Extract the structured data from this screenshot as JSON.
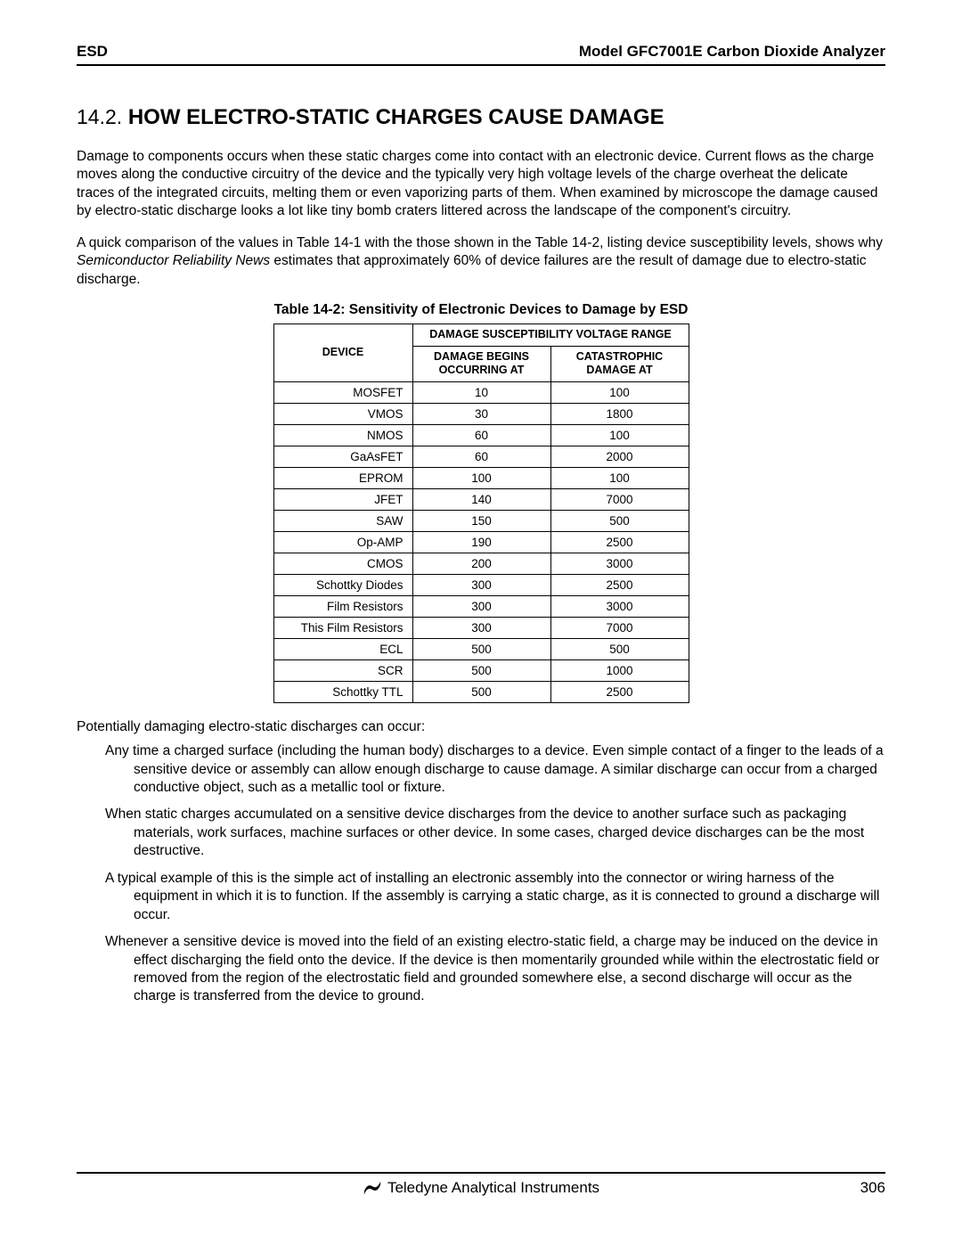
{
  "header": {
    "left": "ESD",
    "right": "Model GFC7001E Carbon Dioxide Analyzer"
  },
  "section": {
    "number": "14.2.",
    "title": "HOW ELECTRO-STATIC CHARGES CAUSE DAMAGE"
  },
  "paragraphs": {
    "p1": "Damage to components occurs when these static charges come into contact with an electronic device.  Current flows as the charge moves along the conductive circuitry of the device and the typically very high voltage levels of the charge overheat the delicate traces of the integrated circuits, melting them or even vaporizing parts of them.  When examined by microscope the damage caused by electro-static discharge looks a lot like tiny bomb craters littered across the landscape of the component's circuitry.",
    "p2_pre": "A quick comparison of the values in Table 14-1 with the those shown in the Table 14-2, listing device susceptibility levels, shows why ",
    "p2_em": "Semiconductor Reliability News",
    "p2_post": " estimates that approximately 60% of device failures are the result of damage due to electro-static discharge.",
    "list_intro": "Potentially damaging electro-static discharges can occur:",
    "b1": "Any time a charged surface (including the human body) discharges to a device.  Even simple contact of a finger to the leads of a sensitive device or assembly can allow enough discharge to cause damage.  A similar discharge can occur from a charged conductive object, such as a metallic tool or fixture.",
    "b2": "When static charges accumulated on a sensitive device discharges from the device to another surface such as packaging materials, work surfaces, machine surfaces or other device.  In some cases, charged device discharges can be the most destructive.",
    "b3": "A typical example of this is the simple act of installing an electronic assembly into the connector or wiring harness of the equipment in which it is to function.  If the assembly is carrying a static charge, as it is connected to ground a discharge will occur.",
    "b4": "Whenever a sensitive device is moved into the field of an existing electro-static field, a charge may be induced on the device in effect discharging the field onto the device.  If the device is then momentarily grounded while within the electrostatic field or removed from the region of the electrostatic field and grounded somewhere else, a second discharge will occur as the charge is transferred from the device to ground."
  },
  "table": {
    "caption": "Table 14-2:  Sensitivity of Electronic Devices to Damage by ESD",
    "header_device": "DEVICE",
    "header_range": "DAMAGE SUSCEPTIBILITY VOLTAGE RANGE",
    "header_begins": "DAMAGE BEGINS OCCURRING AT",
    "header_cat": "CATASTROPHIC DAMAGE  AT",
    "rows": [
      {
        "d": "MOSFET",
        "a": "10",
        "b": "100"
      },
      {
        "d": "VMOS",
        "a": "30",
        "b": "1800"
      },
      {
        "d": "NMOS",
        "a": "60",
        "b": "100"
      },
      {
        "d": "GaAsFET",
        "a": "60",
        "b": "2000"
      },
      {
        "d": "EPROM",
        "a": "100",
        "b": "100"
      },
      {
        "d": "JFET",
        "a": "140",
        "b": "7000"
      },
      {
        "d": "SAW",
        "a": "150",
        "b": "500"
      },
      {
        "d": "Op-AMP",
        "a": "190",
        "b": "2500"
      },
      {
        "d": "CMOS",
        "a": "200",
        "b": "3000"
      },
      {
        "d": "Schottky Diodes",
        "a": "300",
        "b": "2500"
      },
      {
        "d": "Film Resistors",
        "a": "300",
        "b": "3000"
      },
      {
        "d": "This Film Resistors",
        "a": "300",
        "b": "7000"
      },
      {
        "d": "ECL",
        "a": "500",
        "b": "500"
      },
      {
        "d": "SCR",
        "a": "500",
        "b": "1000"
      },
      {
        "d": "Schottky TTL",
        "a": "500",
        "b": "2500"
      }
    ]
  },
  "footer": {
    "company": "Teledyne Analytical Instruments",
    "page": "306"
  },
  "style": {
    "page_bg": "#ffffff",
    "text_color": "#000000",
    "rule_color": "#000000",
    "heading_fontsize_pt": 18,
    "body_fontsize_pt": 11.5,
    "table_fontsize_pt": 10,
    "table_border_color": "#000000",
    "logo_fill": "#000000"
  }
}
